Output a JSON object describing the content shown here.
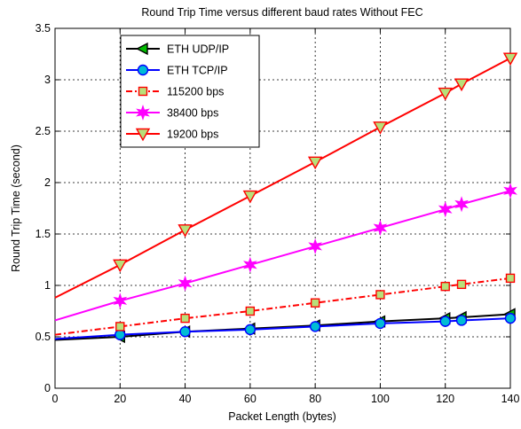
{
  "chart_data": {
    "type": "line",
    "title": "Round Trip  Time  versus  different baud rates  Without FEC",
    "xlabel": "Packet Length  (bytes)",
    "ylabel": "Round Trip  Time  (second)",
    "xlim": [
      0,
      140
    ],
    "ylim": [
      0,
      3.5
    ],
    "xticks": [
      0,
      20,
      40,
      60,
      80,
      100,
      120,
      140
    ],
    "yticks": [
      0,
      0.5,
      1,
      1.5,
      2,
      2.5,
      3,
      3.5
    ],
    "xtick_labels": [
      "0",
      "20",
      "40",
      "60",
      "80",
      "100",
      "120",
      "140"
    ],
    "ytick_labels": [
      "0",
      "0.5",
      "1",
      "1.5",
      "2",
      "2.5",
      "3",
      "3.5"
    ],
    "grid": true,
    "legend_position": "top-left",
    "series": [
      {
        "name": "ETH UDP/IP",
        "color": "#000000",
        "marker": "triangle-left",
        "marker_fill": "#00bb00",
        "line_style": "solid",
        "x": [
          0,
          20,
          40,
          60,
          80,
          100,
          120,
          125,
          140
        ],
        "values": [
          0.47,
          0.5,
          0.55,
          0.58,
          0.61,
          0.65,
          0.68,
          0.69,
          0.72
        ]
      },
      {
        "name": "ETH TCP/IP",
        "color": "#0000ff",
        "marker": "circle",
        "marker_fill": "#00bcd4",
        "line_style": "solid",
        "x": [
          0,
          20,
          40,
          60,
          80,
          100,
          120,
          125,
          140
        ],
        "values": [
          0.48,
          0.52,
          0.55,
          0.57,
          0.6,
          0.63,
          0.65,
          0.66,
          0.68
        ]
      },
      {
        "name": "115200 bps",
        "color": "#ff0000",
        "marker": "square",
        "marker_fill": "#b8e07a",
        "line_style": "dashdot",
        "x": [
          0,
          20,
          40,
          60,
          80,
          100,
          120,
          125,
          140
        ],
        "values": [
          0.52,
          0.6,
          0.68,
          0.75,
          0.83,
          0.91,
          0.99,
          1.01,
          1.07
        ]
      },
      {
        "name": "38400 bps",
        "color": "#ff00ff",
        "marker": "star",
        "marker_fill": "#ff00ff",
        "line_style": "solid",
        "x": [
          0,
          20,
          40,
          60,
          80,
          100,
          120,
          125,
          140
        ],
        "values": [
          0.66,
          0.85,
          1.02,
          1.2,
          1.38,
          1.56,
          1.74,
          1.79,
          1.92
        ]
      },
      {
        "name": "19200 bps",
        "color": "#ff0000",
        "marker": "triangle-down",
        "marker_fill": "#b8e07a",
        "line_style": "solid",
        "x": [
          0,
          20,
          40,
          60,
          80,
          100,
          120,
          125,
          140
        ],
        "values": [
          0.88,
          1.2,
          1.54,
          1.87,
          2.2,
          2.54,
          2.87,
          2.96,
          3.21
        ]
      }
    ]
  }
}
